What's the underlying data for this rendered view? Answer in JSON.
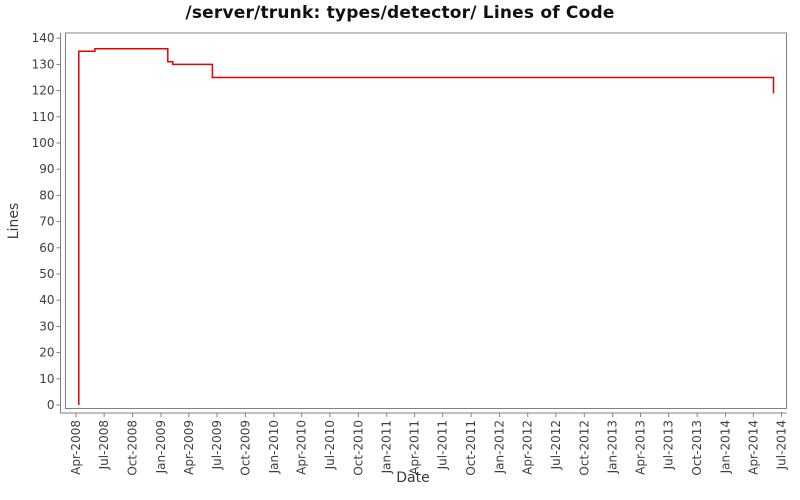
{
  "title": "/server/trunk: types/detector/ Lines of Code",
  "colors": {
    "line": "#e80000",
    "frame": "#808080",
    "axis": "#808080",
    "tick_label": "#3f3f3f",
    "title": "#111111",
    "background": "#ffffff"
  },
  "chart_data": {
    "type": "line",
    "subtype": "step",
    "title": "/server/trunk: types/detector/ Lines of Code",
    "xlabel": "Date",
    "ylabel": "Lines",
    "legend": "none",
    "grid": false,
    "ylim": [
      0,
      140
    ],
    "y_ticks": [
      0,
      10,
      20,
      30,
      40,
      50,
      60,
      70,
      80,
      90,
      100,
      110,
      120,
      130,
      140
    ],
    "x_tick_labels": [
      "Apr-2008",
      "Jul-2008",
      "Oct-2008",
      "Jan-2009",
      "Apr-2009",
      "Jul-2009",
      "Oct-2009",
      "Jan-2010",
      "Apr-2010",
      "Jul-2010",
      "Oct-2010",
      "Jan-2011",
      "Apr-2011",
      "Jul-2011",
      "Oct-2011",
      "Jan-2012",
      "Apr-2012",
      "Jul-2012",
      "Oct-2012",
      "Jan-2013",
      "Apr-2013",
      "Jul-2013",
      "Oct-2013",
      "Jan-2014",
      "Apr-2014",
      "Jul-2014"
    ],
    "x_range": {
      "start": "2008-02-27",
      "end": "2014-07-17"
    },
    "series": [
      {
        "name": "Lines of Code",
        "color": "#e80000",
        "points": [
          [
            "2008-04-10",
            0
          ],
          [
            "2008-04-10",
            135
          ],
          [
            "2008-06-01",
            135
          ],
          [
            "2008-06-01",
            136
          ],
          [
            "2009-01-23",
            136
          ],
          [
            "2009-01-23",
            131
          ],
          [
            "2009-02-08",
            131
          ],
          [
            "2009-02-08",
            130
          ],
          [
            "2009-06-16",
            130
          ],
          [
            "2009-06-16",
            125
          ],
          [
            "2014-06-05",
            125
          ],
          [
            "2014-06-05",
            119
          ]
        ]
      }
    ]
  }
}
